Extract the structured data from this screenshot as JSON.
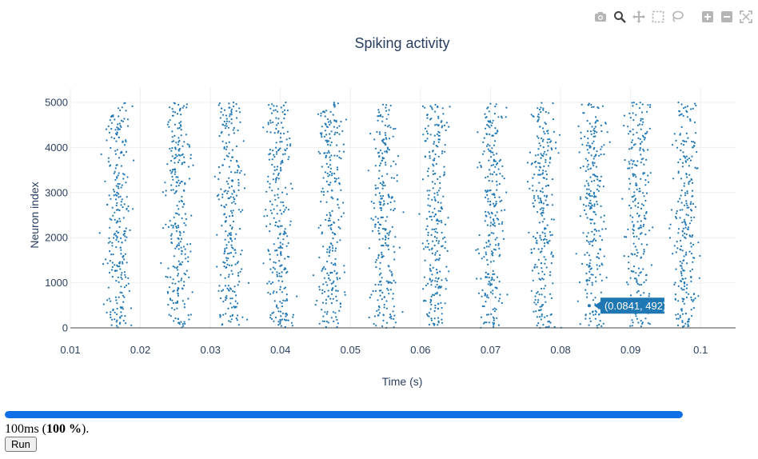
{
  "modebar": {
    "buttons": [
      {
        "name": "camera-icon",
        "title": "Download plot as a png"
      },
      {
        "name": "zoom-icon",
        "title": "Zoom",
        "active": true
      },
      {
        "name": "pan-icon",
        "title": "Pan"
      },
      {
        "name": "box-select-icon",
        "title": "Box Select"
      },
      {
        "name": "lasso-select-icon",
        "title": "Lasso Select"
      },
      {
        "name": "zoom-in-icon",
        "title": "Zoom in"
      },
      {
        "name": "zoom-out-icon",
        "title": "Zoom out"
      },
      {
        "name": "autoscale-icon",
        "title": "Autoscale"
      }
    ]
  },
  "chart_data": {
    "type": "scatter",
    "title": "Spiking activity",
    "xlabel": "Time (s)",
    "ylabel": "Neuron index",
    "xlim": [
      0.01,
      0.105
    ],
    "ylim": [
      0,
      5000
    ],
    "xticks": [
      0.01,
      0.02,
      0.03,
      0.04,
      0.05,
      0.06,
      0.07,
      0.08,
      0.09,
      0.1
    ],
    "xtick_labels": [
      "0.01",
      "0.02",
      "0.03",
      "0.04",
      "0.05",
      "0.06",
      "0.07",
      "0.08",
      "0.09",
      "0.1"
    ],
    "yticks": [
      0,
      1000,
      2000,
      3000,
      4000,
      5000
    ],
    "ytick_labels": [
      "0",
      "1000",
      "2000",
      "3000",
      "4000",
      "5000"
    ],
    "grid": true,
    "marker_color": "#1f77b4",
    "burst_times": [
      0.0168,
      0.0253,
      0.0328,
      0.0398,
      0.0472,
      0.0548,
      0.0621,
      0.0702,
      0.0775,
      0.0846,
      0.0911,
      0.0978
    ],
    "spikes_per_burst": 260,
    "hover": {
      "x": 0.0841,
      "y": 492,
      "label": "(0.0841, 492)"
    }
  },
  "progress": {
    "fraction": 1.0
  },
  "status": {
    "time": "100ms",
    "percent": "100 %",
    "suffix": ")."
  },
  "run_label": "Run"
}
